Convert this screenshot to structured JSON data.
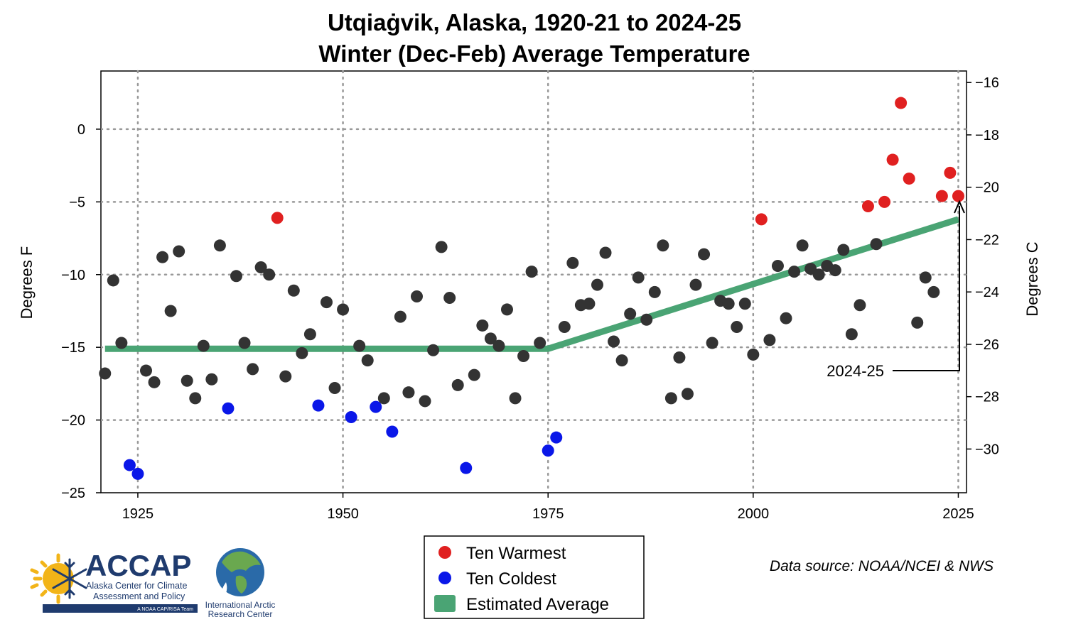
{
  "chart_data": {
    "type": "scatter",
    "title": "Utqiaġvik, Alaska, 1920-21 to 2024-25",
    "subtitle": "Winter (Dec-Feb) Average Temperature",
    "ylabel": "Degrees F",
    "y2label": "Degrees C",
    "xlim": [
      1920.5,
      2026
    ],
    "ylim": [
      -25,
      4
    ],
    "y2lim": [
      -31.67,
      -15.56
    ],
    "xticks": [
      "1925",
      "1950",
      "1975",
      "2000",
      "2025"
    ],
    "yticks": [
      "0",
      "−5",
      "−10",
      "−15",
      "−20",
      "−25"
    ],
    "y2ticks": [
      "−16",
      "−18",
      "−20",
      "−22",
      "−24",
      "−26",
      "−28",
      "−30"
    ],
    "grid": true,
    "legend_position": "bottom-center",
    "colors": {
      "normal": "#333333",
      "warmest": "#e02020",
      "coldest": "#0a17e8",
      "average": "#4aa474"
    },
    "series": [
      {
        "name": "Ten Warmest",
        "x": [
          1942,
          2001,
          2014,
          2016,
          2017,
          2018,
          2019,
          2023,
          2024,
          2025
        ],
        "y": [
          -6.1,
          -6.2,
          -5.3,
          -5.0,
          -2.1,
          1.8,
          -3.4,
          -4.6,
          -3.0,
          -4.6
        ]
      },
      {
        "name": "Ten Coldest",
        "x": [
          1924,
          1925,
          1936,
          1947,
          1951,
          1954,
          1956,
          1965,
          1975,
          1976
        ],
        "y": [
          -23.1,
          -23.7,
          -19.2,
          -19.0,
          -19.8,
          -19.1,
          -20.8,
          -23.3,
          -22.1,
          -21.2
        ]
      },
      {
        "name": "",
        "x": [
          1921,
          1922,
          1923,
          1926,
          1927,
          1928,
          1929,
          1930,
          1931,
          1932,
          1933,
          1934,
          1935,
          1937,
          1938,
          1939,
          1940,
          1941,
          1943,
          1944,
          1945,
          1946,
          1948,
          1949,
          1950,
          1952,
          1953,
          1955,
          1957,
          1958,
          1959,
          1960,
          1961,
          1962,
          1963,
          1964,
          1966,
          1967,
          1968,
          1969,
          1970,
          1971,
          1972,
          1973,
          1974,
          1977,
          1978,
          1979,
          1980,
          1981,
          1982,
          1983,
          1984,
          1985,
          1986,
          1987,
          1988,
          1989,
          1990,
          1991,
          1992,
          1993,
          1994,
          1995,
          1996,
          1997,
          1998,
          1999,
          2000,
          2002,
          2003,
          2004,
          2005,
          2006,
          2007,
          2008,
          2009,
          2010,
          2011,
          2012,
          2013,
          2015,
          2020,
          2021,
          2022
        ],
        "y": [
          -16.8,
          -10.4,
          -14.7,
          -16.6,
          -17.4,
          -8.8,
          -12.5,
          -8.4,
          -17.3,
          -18.5,
          -14.9,
          -17.2,
          -8.0,
          -10.1,
          -14.7,
          -16.5,
          -9.5,
          -10.0,
          -17.0,
          -11.1,
          -15.4,
          -14.1,
          -11.9,
          -17.8,
          -12.4,
          -14.9,
          -15.9,
          -18.5,
          -12.9,
          -18.1,
          -11.5,
          -18.7,
          -15.2,
          -8.1,
          -11.6,
          -17.6,
          -16.9,
          -13.5,
          -14.4,
          -14.9,
          -12.4,
          -18.5,
          -15.6,
          -9.8,
          -14.7,
          -13.6,
          -9.2,
          -12.1,
          -12.0,
          -10.7,
          -8.5,
          -14.6,
          -15.9,
          -12.7,
          -10.2,
          -13.1,
          -11.2,
          -8.0,
          -18.5,
          -15.7,
          -18.2,
          -10.7,
          -8.6,
          -14.7,
          -11.8,
          -12.0,
          -13.6,
          -12.0,
          -15.5,
          -14.5,
          -9.4,
          -13.0,
          -9.8,
          -8.0,
          -9.6,
          -10.0,
          -9.4,
          -9.7,
          -8.3,
          -14.1,
          -12.1,
          -7.9,
          -13.3,
          -10.2,
          -11.2
        ]
      },
      {
        "name": "Estimated Average",
        "x": [
          1921,
          1975,
          2025
        ],
        "y": [
          -15.1,
          -15.1,
          -6.2
        ]
      }
    ],
    "annotation": {
      "text": "2024-25",
      "x": 2025,
      "y": -4.6
    },
    "source": "Data source: NOAA/NCEI & NWS"
  },
  "logos": {
    "accap_name": "ACCAP",
    "accap_line1": "Alaska Center for Climate",
    "accap_line2": "Assessment and Policy",
    "accap_tag": "A NOAA CAP/RISA Team",
    "iarc_line1": "International Arctic",
    "iarc_line2": "Research Center"
  }
}
